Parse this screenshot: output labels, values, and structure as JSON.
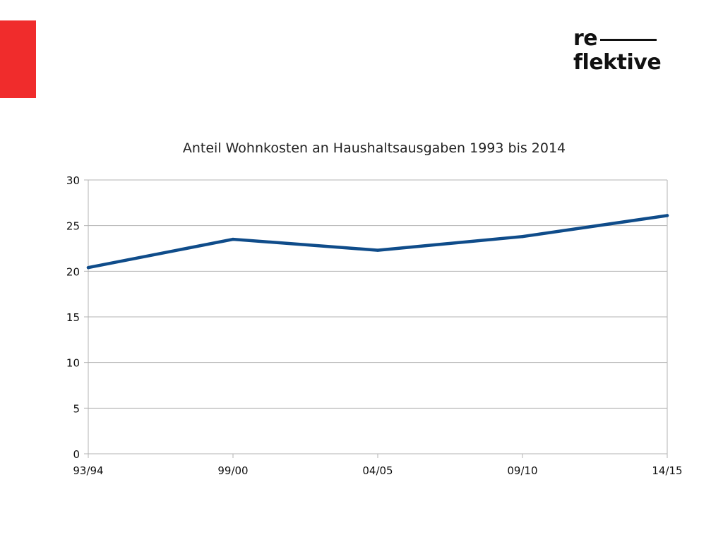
{
  "brand": {
    "logo_line1": "re",
    "logo_line2": "flektive",
    "accent_color": "#f02c2c",
    "text_color": "#111111"
  },
  "chart_data": {
    "type": "line",
    "title": "Anteil Wohnkosten an Haushaltsausgaben 1993 bis 2014",
    "categories": [
      "93/94",
      "99/00",
      "04/05",
      "09/10",
      "14/15"
    ],
    "series": [
      {
        "values": [
          20.4,
          23.5,
          22.3,
          23.8,
          26.1
        ],
        "color": "#0f4c8a"
      }
    ],
    "ylim": [
      0,
      30
    ],
    "yticks": [
      0,
      5,
      10,
      15,
      20,
      25,
      30
    ],
    "xlabel": "",
    "ylabel": "",
    "grid": true,
    "legend": "none"
  }
}
